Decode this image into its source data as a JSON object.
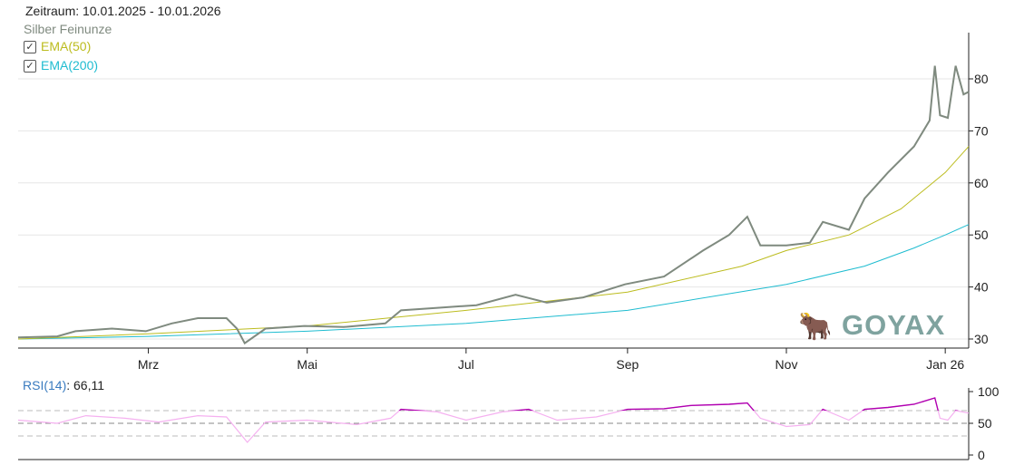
{
  "header": {
    "zeitraum": "Zeitraum: 10.01.2025 - 10.01.2026",
    "instrument": "Silber Feinunze"
  },
  "legend": [
    {
      "label": "EMA(50)",
      "checked": true,
      "color": "#bcbc1e"
    },
    {
      "label": "EMA(200)",
      "checked": true,
      "color": "#1ebcd0"
    }
  ],
  "logo": "GOYAX",
  "rsi": {
    "label": "RSI(14)",
    "value": "66,11"
  },
  "chart_data": [
    {
      "type": "line",
      "title": "Silber Feinunze",
      "xrange": [
        "2025-01-10",
        "2026-01-10"
      ],
      "ylim": [
        28,
        88
      ],
      "yticks": [
        30,
        40,
        50,
        60,
        70,
        80
      ],
      "grid": true,
      "xticks": [
        {
          "date": "2025-03-01",
          "label": "Mrz"
        },
        {
          "date": "2025-05-01",
          "label": "Mai"
        },
        {
          "date": "2025-07-01",
          "label": "Jul"
        },
        {
          "date": "2025-09-01",
          "label": "Sep"
        },
        {
          "date": "2025-11-01",
          "label": "Nov"
        },
        {
          "date": "2026-01-01",
          "label": "Jan 26"
        }
      ],
      "series": [
        {
          "name": "Silber Feinunze",
          "color": "#7f8a7f",
          "points": [
            [
              "2025-01-10",
              30.3
            ],
            [
              "2025-01-25",
              30.5
            ],
            [
              "2025-02-01",
              31.5
            ],
            [
              "2025-02-15",
              32
            ],
            [
              "2025-02-28",
              31.5
            ],
            [
              "2025-03-10",
              33
            ],
            [
              "2025-03-20",
              34
            ],
            [
              "2025-03-31",
              34
            ],
            [
              "2025-04-04",
              32
            ],
            [
              "2025-04-07",
              29.2
            ],
            [
              "2025-04-15",
              32
            ],
            [
              "2025-04-30",
              32.5
            ],
            [
              "2025-05-15",
              32.3
            ],
            [
              "2025-05-31",
              33
            ],
            [
              "2025-06-06",
              35.5
            ],
            [
              "2025-06-20",
              36
            ],
            [
              "2025-07-05",
              36.5
            ],
            [
              "2025-07-20",
              38.5
            ],
            [
              "2025-08-01",
              37
            ],
            [
              "2025-08-15",
              38
            ],
            [
              "2025-08-31",
              40.5
            ],
            [
              "2025-09-15",
              42
            ],
            [
              "2025-09-30",
              47
            ],
            [
              "2025-10-10",
              50
            ],
            [
              "2025-10-17",
              53.5
            ],
            [
              "2025-10-22",
              48
            ],
            [
              "2025-11-01",
              48
            ],
            [
              "2025-11-10",
              48.5
            ],
            [
              "2025-11-15",
              52.5
            ],
            [
              "2025-11-25",
              51
            ],
            [
              "2025-12-01",
              57
            ],
            [
              "2025-12-10",
              62
            ],
            [
              "2025-12-20",
              67
            ],
            [
              "2025-12-26",
              72
            ],
            [
              "2025-12-28",
              82.5
            ],
            [
              "2025-12-30",
              73
            ],
            [
              "2026-01-02",
              72.5
            ],
            [
              "2026-01-05",
              82.5
            ],
            [
              "2026-01-08",
              77
            ],
            [
              "2026-01-10",
              77.5
            ]
          ]
        },
        {
          "name": "EMA(50)",
          "color": "#bcbc1e",
          "points": [
            [
              "2025-01-10",
              30
            ],
            [
              "2025-03-01",
              31
            ],
            [
              "2025-05-01",
              32.5
            ],
            [
              "2025-07-01",
              35.5
            ],
            [
              "2025-09-01",
              39
            ],
            [
              "2025-10-15",
              44
            ],
            [
              "2025-11-01",
              47
            ],
            [
              "2025-11-25",
              50
            ],
            [
              "2025-12-15",
              55
            ],
            [
              "2026-01-01",
              62
            ],
            [
              "2026-01-10",
              67
            ]
          ]
        },
        {
          "name": "EMA(200)",
          "color": "#1ebcd0",
          "points": [
            [
              "2025-01-10",
              30
            ],
            [
              "2025-03-01",
              30.5
            ],
            [
              "2025-05-01",
              31.5
            ],
            [
              "2025-07-01",
              33
            ],
            [
              "2025-09-01",
              35.5
            ],
            [
              "2025-11-01",
              40.5
            ],
            [
              "2025-12-01",
              44
            ],
            [
              "2025-12-20",
              47.5
            ],
            [
              "2026-01-01",
              50
            ],
            [
              "2026-01-10",
              52
            ]
          ]
        }
      ]
    },
    {
      "type": "line",
      "title": "RSI(14)",
      "ylim": [
        0,
        100
      ],
      "yticks": [
        0,
        50,
        100
      ],
      "levels": [
        30,
        50,
        70
      ],
      "color_normal": "#f5b0f0",
      "color_overbought": "#b000b0",
      "points": [
        [
          "2025-01-10",
          55
        ],
        [
          "2025-01-25",
          50
        ],
        [
          "2025-02-05",
          62
        ],
        [
          "2025-02-20",
          58
        ],
        [
          "2025-03-05",
          52
        ],
        [
          "2025-03-20",
          62
        ],
        [
          "2025-03-31",
          60
        ],
        [
          "2025-04-05",
          35
        ],
        [
          "2025-04-08",
          20
        ],
        [
          "2025-04-15",
          52
        ],
        [
          "2025-05-01",
          55
        ],
        [
          "2025-05-20",
          48
        ],
        [
          "2025-06-02",
          58
        ],
        [
          "2025-06-06",
          72
        ],
        [
          "2025-06-20",
          68
        ],
        [
          "2025-07-01",
          55
        ],
        [
          "2025-07-15",
          68
        ],
        [
          "2025-07-25",
          72
        ],
        [
          "2025-08-05",
          55
        ],
        [
          "2025-08-20",
          60
        ],
        [
          "2025-09-01",
          72
        ],
        [
          "2025-09-15",
          73
        ],
        [
          "2025-09-25",
          78
        ],
        [
          "2025-10-10",
          80
        ],
        [
          "2025-10-17",
          82
        ],
        [
          "2025-10-22",
          58
        ],
        [
          "2025-11-01",
          45
        ],
        [
          "2025-11-10",
          48
        ],
        [
          "2025-11-15",
          72
        ],
        [
          "2025-11-25",
          55
        ],
        [
          "2025-12-01",
          72
        ],
        [
          "2025-12-10",
          75
        ],
        [
          "2025-12-20",
          80
        ],
        [
          "2025-12-28",
          90
        ],
        [
          "2025-12-30",
          58
        ],
        [
          "2026-01-02",
          55
        ],
        [
          "2026-01-05",
          70
        ],
        [
          "2026-01-10",
          66.11
        ]
      ]
    }
  ]
}
